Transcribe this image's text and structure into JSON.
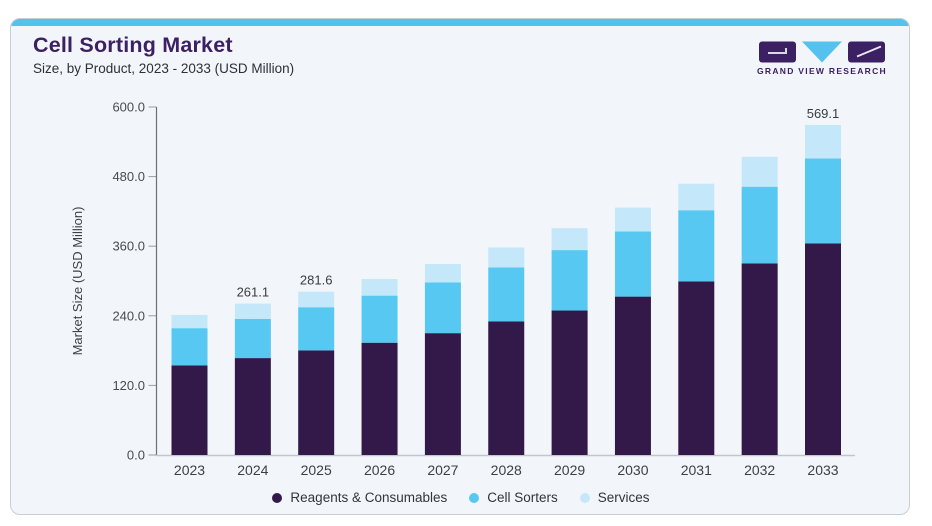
{
  "header": {
    "title": "Cell Sorting Market",
    "subtitle": "Size, by Product, 2023 - 2033 (USD Million)"
  },
  "logo": {
    "text": "GRAND VIEW RESEARCH",
    "mark_colors": {
      "dark": "#3c2064",
      "blue": "#55c1ee"
    }
  },
  "colors": {
    "card_background": "#f2f6fa",
    "card_border": "#c9ced6",
    "top_accent": "#55c1ee",
    "axis_line": "#6f6f75",
    "baseline": "#c2c5cb",
    "tick_text": "#4a4a52",
    "bar_label_text": "#3a3a40"
  },
  "chart_data": {
    "type": "bar",
    "stacked": true,
    "title": "Cell Sorting Market",
    "subtitle": "Size, by Product, 2023 - 2033 (USD Million)",
    "unit": "USD Million",
    "ylabel": "Market Size (USD Million)",
    "xlabel": "",
    "ylim": [
      0,
      600
    ],
    "yticks": [
      0,
      120,
      240,
      360,
      480,
      600
    ],
    "ytick_labels": [
      "0.0",
      "120.0",
      "240.0",
      "360.0",
      "480.0",
      "600.0"
    ],
    "gridlines": false,
    "legend_position": "bottom",
    "categories": [
      "2023",
      "2024",
      "2025",
      "2026",
      "2027",
      "2028",
      "2029",
      "2030",
      "2031",
      "2032",
      "2033"
    ],
    "series": [
      {
        "name": "Reagents & Consumables",
        "color": "#32194a",
        "values": [
          154.6,
          167.1,
          180.4,
          193.6,
          210.1,
          230.2,
          249.1,
          273.1,
          299.4,
          330.4,
          364.8
        ]
      },
      {
        "name": "Cell Sorters",
        "color": "#57c8f2",
        "values": [
          64.1,
          67.7,
          74.4,
          81.2,
          87.6,
          93.3,
          104.2,
          112.2,
          122.6,
          132.2,
          146.6
        ]
      },
      {
        "name": "Services",
        "color": "#c4e8fa",
        "values": [
          23.0,
          26.3,
          26.8,
          28.7,
          31.6,
          34.3,
          37.8,
          41.3,
          45.8,
          51.6,
          57.7
        ]
      }
    ],
    "totals": [
      241.7,
      261.1,
      281.6,
      303.5,
      329.3,
      357.8,
      391.1,
      426.6,
      467.8,
      514.2,
      569.1
    ],
    "bar_labels": [
      "",
      "261.1",
      "281.6",
      "",
      "",
      "",
      "",
      "",
      "",
      "",
      "569.1"
    ]
  }
}
